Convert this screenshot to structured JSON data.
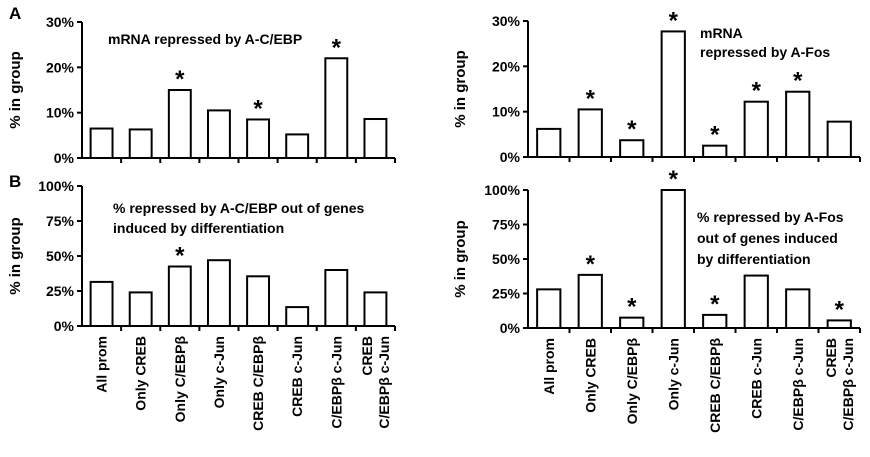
{
  "figure": {
    "panel_labels": [
      "A",
      "B"
    ],
    "categories": [
      "All prom",
      "Only CREB",
      "Only C/EBPβ",
      "Only c-Jun",
      "CREB C/EBPβ",
      "CREB c-Jun",
      "C/EBPβ c-Jun",
      "CREB C/EBPβ c-Jun"
    ],
    "category_lines": [
      [
        "All prom"
      ],
      [
        "Only CREB"
      ],
      [
        "Only C/EBPβ"
      ],
      [
        "Only c-Jun"
      ],
      [
        "CREB C/EBPβ"
      ],
      [
        "CREB c-Jun"
      ],
      [
        "C/EBPβ c-Jun"
      ],
      [
        "CREB",
        "C/EBPβ  c-Jun"
      ]
    ],
    "star_symbol": "*",
    "bar_fill": "#ffffff",
    "bar_stroke": "#000000"
  },
  "chart_data": [
    {
      "type": "bar",
      "panel": "A",
      "annotation": [
        "mRNA repressed by A-C/EBP"
      ],
      "ylabel": "% in group",
      "ylim": [
        0,
        30
      ],
      "yticks": [
        "0%",
        "10%",
        "20%",
        "30%"
      ],
      "categories": [
        "All prom",
        "Only CREB",
        "Only C/EBPβ",
        "Only c-Jun",
        "CREB C/EBPβ",
        "CREB c-Jun",
        "C/EBPβ c-Jun",
        "CREB C/EBPβ c-Jun"
      ],
      "values": [
        6.5,
        6.3,
        15.0,
        10.5,
        8.5,
        5.2,
        22.0,
        8.6
      ],
      "significant": [
        false,
        false,
        true,
        false,
        true,
        false,
        true,
        false
      ]
    },
    {
      "type": "bar",
      "panel": "",
      "annotation": [
        "mRNA",
        "repressed by A-Fos"
      ],
      "ylabel": "% in group",
      "ylim": [
        0,
        30
      ],
      "yticks": [
        "0%",
        "10%",
        "20%",
        "30%"
      ],
      "categories": [
        "All prom",
        "Only CREB",
        "Only C/EBPβ",
        "Only c-Jun",
        "CREB C/EBPβ",
        "CREB c-Jun",
        "C/EBPβ c-Jun",
        "CREB C/EBPβ c-Jun"
      ],
      "values": [
        6.2,
        10.5,
        3.7,
        27.7,
        2.5,
        12.2,
        14.4,
        7.8
      ],
      "significant": [
        false,
        true,
        true,
        true,
        true,
        true,
        true,
        false
      ]
    },
    {
      "type": "bar",
      "panel": "B",
      "annotation": [
        "% repressed by A-C/EBP out of genes",
        "induced by differentiation"
      ],
      "ylabel": "% in group",
      "ylim": [
        0,
        100
      ],
      "yticks": [
        "0%",
        "25%",
        "50%",
        "75%",
        "100%"
      ],
      "categories": [
        "All prom",
        "Only CREB",
        "Only C/EBPβ",
        "Only c-Jun",
        "CREB C/EBPβ",
        "CREB c-Jun",
        "C/EBPβ c-Jun",
        "CREB C/EBPβ c-Jun"
      ],
      "values": [
        31.5,
        24.0,
        42.5,
        47.0,
        35.5,
        13.5,
        40.0,
        24.0
      ],
      "significant": [
        false,
        false,
        true,
        false,
        false,
        false,
        false,
        false
      ]
    },
    {
      "type": "bar",
      "panel": "",
      "annotation": [
        "% repressed by A-Fos",
        "out of genes induced",
        "by differentiation"
      ],
      "ylabel": "% in group",
      "ylim": [
        0,
        100
      ],
      "yticks": [
        "0%",
        "25%",
        "50%",
        "75%",
        "100%"
      ],
      "categories": [
        "All prom",
        "Only CREB",
        "Only C/EBPβ",
        "Only c-Jun",
        "CREB C/EBPβ",
        "CREB c-Jun",
        "C/EBPβ c-Jun",
        "CREB C/EBPβ c-Jun"
      ],
      "values": [
        28.0,
        38.5,
        7.5,
        100.0,
        9.5,
        38.0,
        28.0,
        5.5
      ],
      "significant": [
        false,
        true,
        true,
        true,
        true,
        false,
        false,
        true
      ]
    }
  ]
}
